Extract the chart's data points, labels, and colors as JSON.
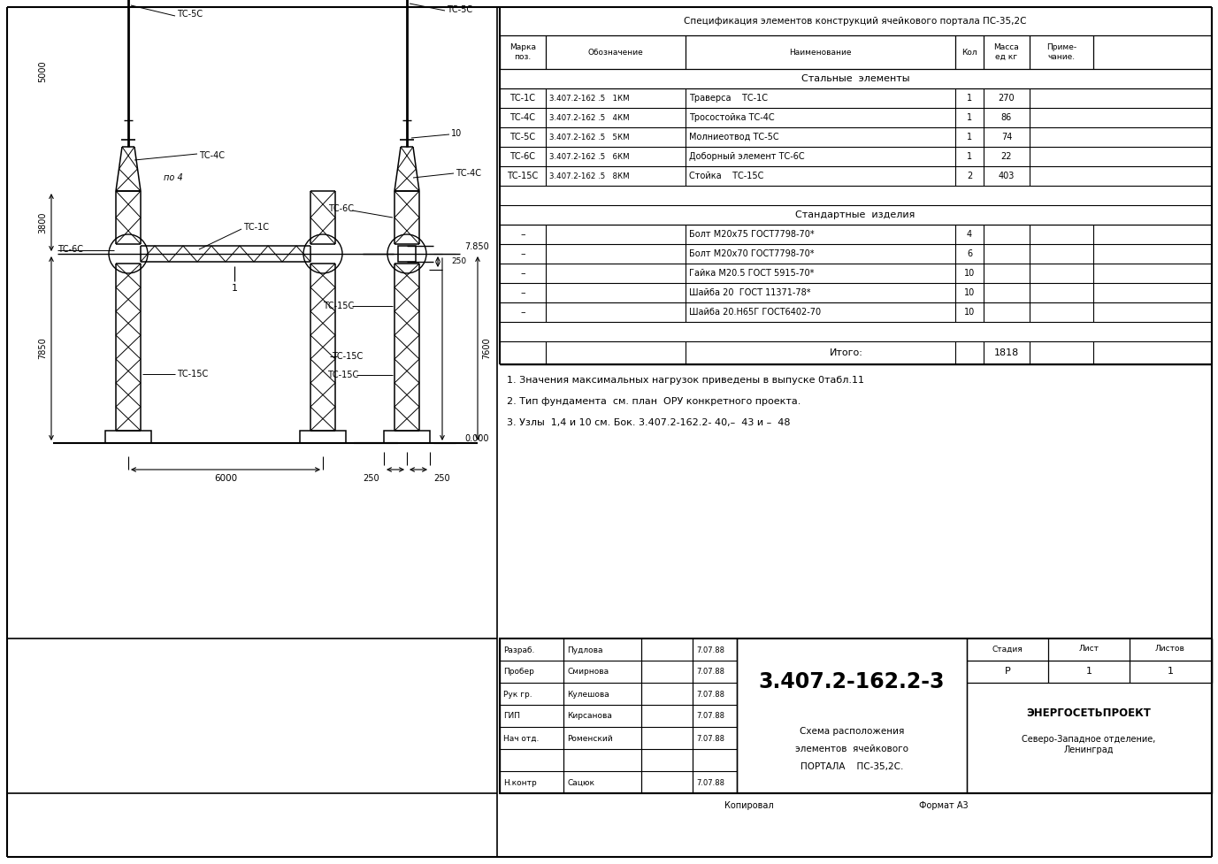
{
  "bg_color": "#ffffff",
  "title_table": "Спецификация элементов конструкций ячейкового портала ПС-35,2С",
  "section_steel": "Стальные  элементы",
  "section_std": "Стандартные  изделия",
  "steel_rows": [
    [
      "ТС-1С",
      "3.407.2-162 .5   1КМ",
      "Траверса    ТС-1С",
      "1",
      "270"
    ],
    [
      "ТС-4С",
      "3.407.2-162 .5   4КМ",
      "Тросостойка ТС-4С",
      "1",
      "86"
    ],
    [
      "ТС-5С",
      "3.407.2-162 .5   5КМ",
      "Молниеотвод ТС-5С",
      "1",
      "74"
    ],
    [
      "ТС-6С",
      "3.407.2-162 .5   6КМ",
      "Доборный элемент ТС-6С",
      "1",
      "22"
    ],
    [
      "ТС-15С",
      "3.407.2-162 .5   8КМ",
      "Стойка    ТС-15С",
      "2",
      "403"
    ]
  ],
  "std_rows": [
    [
      "–",
      "Болт М20х75 ГОСТ7798-70*",
      "4"
    ],
    [
      "–",
      "Болт М20х70 ГОСТ7798-70*",
      "6"
    ],
    [
      "–",
      "Гайка М20.5 ГОСТ 5915-70*",
      "10"
    ],
    [
      "–",
      "Шайба 20  ГОСТ 11371-78*",
      "10"
    ],
    [
      "–",
      "Шайба 20.Н65Г ГОСТ6402-70",
      "10"
    ]
  ],
  "total_label": "Итого:",
  "total_value": "1818",
  "notes": [
    "1. Значения максимальных нагрузок приведены в выпуске 0табл.11",
    "2. Тип фундамента  см. план  ОРУ конкретного проекта.",
    "3. Узлы  1,4 и 10 см. Бок. 3.407.2-162.2- 40,–  43 и –  48"
  ],
  "tb_roles": [
    "Разраб.",
    "Пробер",
    "Рук гр.",
    "ГИП",
    "Нач отд.",
    "",
    "Н.контр"
  ],
  "tb_names": [
    "Пудлова",
    "Смирнова",
    "Кулешова",
    "Кирсанова",
    "Роменский",
    "",
    "Сацюк"
  ],
  "tb_date": [
    "7.07.88",
    "7.07.88",
    "7.07.88",
    "7.07.88",
    "7.07.88",
    "",
    "7.07.88"
  ],
  "drawing_num": "3.407.2-162.2-3",
  "desc_lines": [
    "Схема расположения",
    "элементов  ячейкового",
    "ПОРТАЛА    ПС-35,2С."
  ],
  "stage": "Стадия",
  "stage_val": "Р",
  "sheet": "Лист",
  "sheet_val": "1",
  "sheets": "Листов",
  "sheets_val": "1",
  "org": "ЭНЕРГОСЕТЬПРОЕКТ",
  "org_sub": "Северо-Западное отделение,\nЛенинград",
  "copy_label": "Копировал",
  "format_label": "Формат А3",
  "dim_5000": "5000",
  "dim_3800": "3800",
  "dim_7850": "7850",
  "dim_6000": "6000",
  "dim_250a": "250",
  "dim_250b": "250",
  "dim_7600": "7600",
  "label_tc5c_l": "ТС-5С",
  "label_tc4c_l": "ТС-4С",
  "label_po4": "по 4",
  "label_tc1c": "ТС-1С",
  "label_tc6c_l": "ТС-6С",
  "label_tc15c_l1": "ТС-15С",
  "label_tc15c_l2": "ТС-15С",
  "label_1": "1",
  "label_tc5c_r": "ТС-5С",
  "label_10": "10",
  "label_tc4c_r": "ТС-4С",
  "label_tc6c_r": "ТС-6С",
  "label_tc15c_r1": "ТС-15С",
  "label_tc15c_r2": "ТС-15С",
  "dim_7850_r": "7.850",
  "dim_0000": "0.000"
}
